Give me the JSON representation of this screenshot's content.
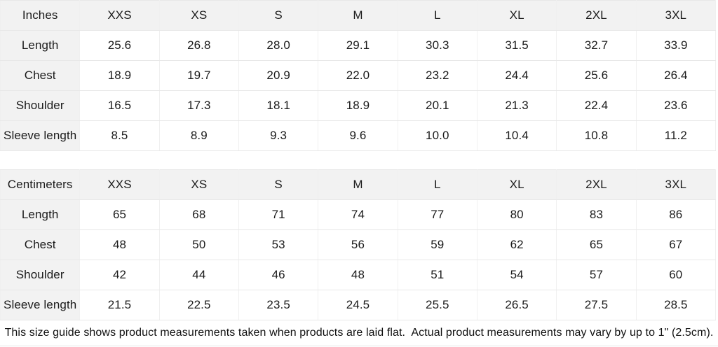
{
  "page": {
    "background": "#ffffff",
    "cell_grey": "#f2f2f2",
    "border_color": "#e8e8e8",
    "text_color": "#1b1b1b"
  },
  "tables": [
    {
      "unit_label": "Inches",
      "sizes": [
        "XXS",
        "XS",
        "S",
        "M",
        "L",
        "XL",
        "2XL",
        "3XL"
      ],
      "rows": [
        {
          "label": "Length",
          "values": [
            "25.6",
            "26.8",
            "28.0",
            "29.1",
            "30.3",
            "31.5",
            "32.7",
            "33.9"
          ]
        },
        {
          "label": "Chest",
          "values": [
            "18.9",
            "19.7",
            "20.9",
            "22.0",
            "23.2",
            "24.4",
            "25.6",
            "26.4"
          ]
        },
        {
          "label": "Shoulder",
          "values": [
            "16.5",
            "17.3",
            "18.1",
            "18.9",
            "20.1",
            "21.3",
            "22.4",
            "23.6"
          ]
        },
        {
          "label": "Sleeve length",
          "values": [
            "8.5",
            "8.9",
            "9.3",
            "9.6",
            "10.0",
            "10.4",
            "10.8",
            "11.2"
          ]
        }
      ]
    },
    {
      "unit_label": "Centimeters",
      "sizes": [
        "XXS",
        "XS",
        "S",
        "M",
        "L",
        "XL",
        "2XL",
        "3XL"
      ],
      "rows": [
        {
          "label": "Length",
          "values": [
            "65",
            "68",
            "71",
            "74",
            "77",
            "80",
            "83",
            "86"
          ]
        },
        {
          "label": "Chest",
          "values": [
            "48",
            "50",
            "53",
            "56",
            "59",
            "62",
            "65",
            "67"
          ]
        },
        {
          "label": "Shoulder",
          "values": [
            "42",
            "44",
            "46",
            "48",
            "51",
            "54",
            "57",
            "60"
          ]
        },
        {
          "label": "Sleeve length",
          "values": [
            "21.5",
            "22.5",
            "23.5",
            "24.5",
            "25.5",
            "26.5",
            "27.5",
            "28.5"
          ]
        }
      ]
    }
  ],
  "footer": {
    "note": "This size guide shows product measurements taken when products are laid flat.  Actual product measurements may vary by up to 1\" (2.5cm)."
  }
}
